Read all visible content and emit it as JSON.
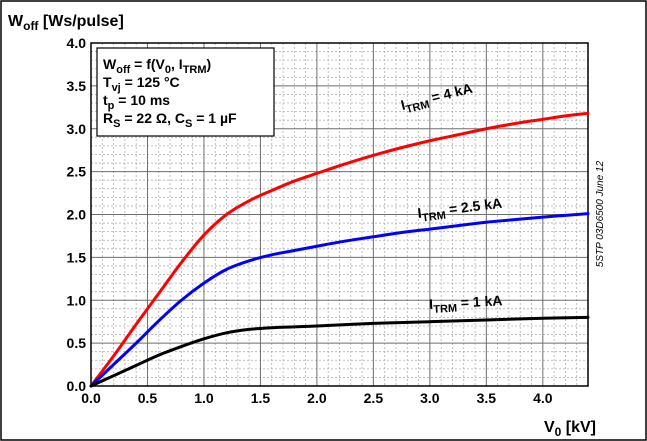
{
  "chart_data": {
    "type": "line",
    "ylabel": {
      "main": "W",
      "sub": "off",
      "rest": " [Ws/pulse]"
    },
    "xlabel": {
      "main": "V",
      "sub": "0",
      "rest": " [kV]"
    },
    "xlim": [
      0,
      4.4
    ],
    "ylim": [
      0,
      4.0
    ],
    "x_ticks": [
      0.0,
      0.5,
      1.0,
      1.5,
      2.0,
      2.5,
      3.0,
      3.5,
      4.0
    ],
    "x_tick_labels": [
      "0.0",
      "0.5",
      "1.0",
      "1.5",
      "2.0",
      "2.5",
      "3.0",
      "3.5",
      "4.0"
    ],
    "y_ticks": [
      0.0,
      0.5,
      1.0,
      1.5,
      2.0,
      2.5,
      3.0,
      3.5,
      4.0
    ],
    "y_tick_labels": [
      "0.0",
      "0.5",
      "1.0",
      "1.5",
      "2.0",
      "2.5",
      "3.0",
      "3.5",
      "4.0"
    ],
    "grid": true,
    "conditions": [
      {
        "segments": [
          {
            "t": "W"
          },
          {
            "t": "off",
            "sub": true
          },
          {
            "t": " = f(V"
          },
          {
            "t": "0",
            "sub": true
          },
          {
            "t": ", I"
          },
          {
            "t": "TRM",
            "sub": true
          },
          {
            "t": ")"
          }
        ]
      },
      {
        "segments": [
          {
            "t": "T"
          },
          {
            "t": "vj",
            "sub": true
          },
          {
            "t": " = 125 °C"
          }
        ]
      },
      {
        "segments": [
          {
            "t": "t"
          },
          {
            "t": "p",
            "sub": true
          },
          {
            "t": " = 10 ms"
          }
        ]
      },
      {
        "segments": [
          {
            "t": "R"
          },
          {
            "t": "S",
            "sub": true
          },
          {
            "t": " = 22 Ω, C"
          },
          {
            "t": "S",
            "sub": true
          },
          {
            "t": " = 1 µF"
          }
        ]
      }
    ],
    "doc_id": "5STP 03D6500 June 12",
    "series": [
      {
        "color": "#ff0000",
        "label": {
          "main": "I",
          "sub": "TRM",
          "rest": " = 4 kA"
        },
        "x": [
          0.0,
          0.2,
          0.4,
          0.6,
          0.8,
          1.0,
          1.2,
          1.4,
          1.6,
          1.8,
          2.0,
          2.25,
          2.5,
          2.75,
          3.0,
          3.25,
          3.5,
          3.75,
          4.0,
          4.2,
          4.4
        ],
        "y": [
          0.0,
          0.35,
          0.72,
          1.08,
          1.44,
          1.76,
          2.0,
          2.16,
          2.28,
          2.39,
          2.48,
          2.59,
          2.69,
          2.78,
          2.86,
          2.93,
          3.0,
          3.06,
          3.11,
          3.15,
          3.18
        ]
      },
      {
        "color": "#0000ff",
        "label": {
          "main": "I",
          "sub": "TRM",
          "rest": " = 2.5 kA"
        },
        "x": [
          0.0,
          0.2,
          0.4,
          0.6,
          0.8,
          1.0,
          1.2,
          1.4,
          1.6,
          1.8,
          2.0,
          2.25,
          2.5,
          2.75,
          3.0,
          3.25,
          3.5,
          3.75,
          4.0,
          4.2,
          4.4
        ],
        "y": [
          0.0,
          0.25,
          0.5,
          0.76,
          1.0,
          1.2,
          1.36,
          1.46,
          1.53,
          1.58,
          1.63,
          1.69,
          1.74,
          1.79,
          1.83,
          1.87,
          1.91,
          1.94,
          1.97,
          1.99,
          2.01
        ]
      },
      {
        "color": "#000000",
        "label": {
          "main": "I",
          "sub": "TRM",
          "rest": " = 1 kA"
        },
        "x": [
          0.0,
          0.2,
          0.4,
          0.6,
          0.8,
          1.0,
          1.2,
          1.4,
          1.6,
          1.8,
          2.0,
          2.5,
          3.0,
          3.5,
          4.0,
          4.4
        ],
        "y": [
          0.0,
          0.12,
          0.24,
          0.36,
          0.46,
          0.55,
          0.62,
          0.66,
          0.68,
          0.69,
          0.7,
          0.73,
          0.75,
          0.77,
          0.79,
          0.8
        ]
      }
    ]
  }
}
